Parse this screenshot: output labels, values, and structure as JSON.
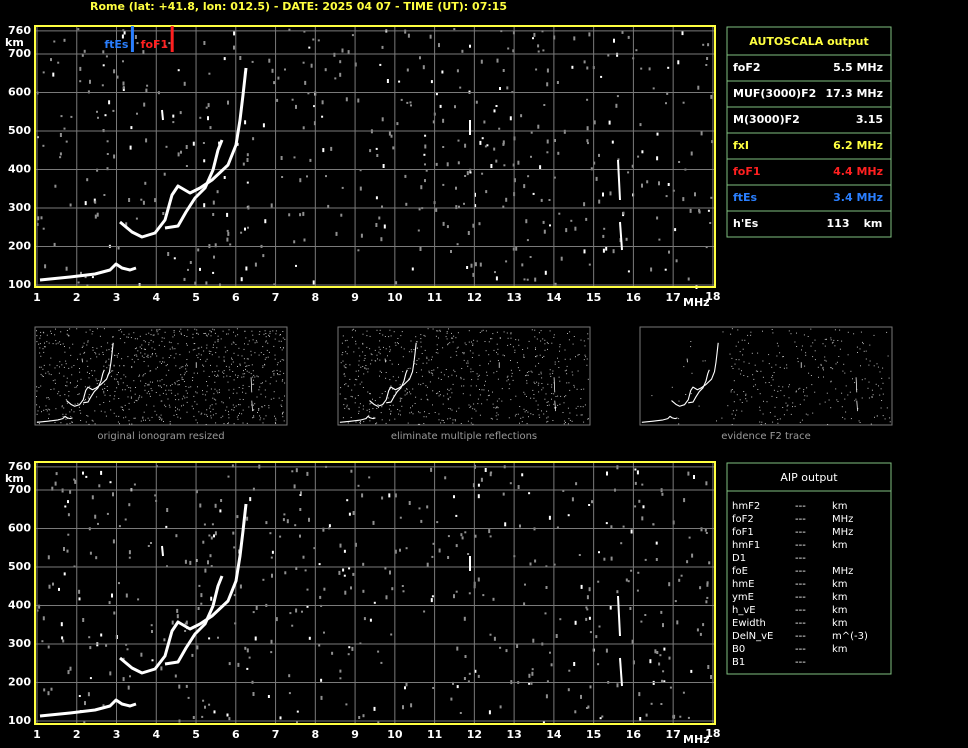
{
  "header": "Rome (lat: +41.8, lon: 012.5) - DATE: 2025 04 07 - TIME (UT): 07:15",
  "ionograms": [
    {
      "xticks": [
        1,
        2,
        3,
        4,
        5,
        6,
        7,
        8,
        9,
        10,
        11,
        12,
        13,
        14,
        15,
        16,
        17,
        18
      ],
      "yticks": [
        100,
        200,
        300,
        400,
        500,
        600,
        700,
        760
      ],
      "x_unit": "MHz",
      "y_unit": "km",
      "markers": [
        {
          "label": "ftEs",
          "value": 3.4,
          "color": "#2a7fff"
        },
        {
          "label": "foF1",
          "value": 4.4,
          "color": "#ff2020"
        }
      ]
    },
    {
      "xticks": [
        1,
        2,
        3,
        4,
        5,
        6,
        7,
        8,
        9,
        10,
        11,
        12,
        13,
        14,
        15,
        16,
        17,
        18
      ],
      "yticks": [
        100,
        200,
        300,
        400,
        500,
        600,
        700,
        760
      ],
      "x_unit": "MHz",
      "y_unit": "km"
    }
  ],
  "autoscala": {
    "title": "AUTOSCALA output",
    "rows": [
      {
        "name": "foF2",
        "value": "5.5 MHz",
        "color": "#ffffff"
      },
      {
        "name": "MUF(3000)F2",
        "value": "17.3 MHz",
        "color": "#ffffff"
      },
      {
        "name": "M(3000)F2",
        "value": "3.15",
        "color": "#ffffff"
      },
      {
        "name": "fxI",
        "value": "6.2 MHz",
        "color": "#ffff40"
      },
      {
        "name": "foF1",
        "value": "4.4 MHz",
        "color": "#ff2020"
      },
      {
        "name": "ftEs",
        "value": "3.4 MHz",
        "color": "#2a7fff"
      },
      {
        "name": "h'Es",
        "value": "113",
        "unit": "km",
        "color": "#ffffff"
      }
    ]
  },
  "thumbnails": [
    {
      "caption": "original ionogram resized"
    },
    {
      "caption": "eliminate multiple reflections"
    },
    {
      "caption": "evidence F2 trace"
    }
  ],
  "aip": {
    "title": "AIP output",
    "rows": [
      [
        "hmF2",
        "---",
        "km"
      ],
      [
        "foF2",
        "---",
        "MHz"
      ],
      [
        "foF1",
        "---",
        "MHz"
      ],
      [
        "hmF1",
        "---",
        "km"
      ],
      [
        "D1",
        "---"
      ],
      [
        "foE",
        "---",
        "MHz"
      ],
      [
        "hmE",
        "---",
        "km"
      ],
      [
        "ymE",
        "---",
        "km"
      ],
      [
        "h_vE",
        "---",
        "km"
      ],
      [
        "Ewidth",
        "---",
        "km"
      ],
      [
        "DelN_vE",
        "---",
        "m^(-3)"
      ],
      [
        "B0",
        "---",
        "km"
      ],
      [
        "B1",
        "---"
      ]
    ]
  }
}
